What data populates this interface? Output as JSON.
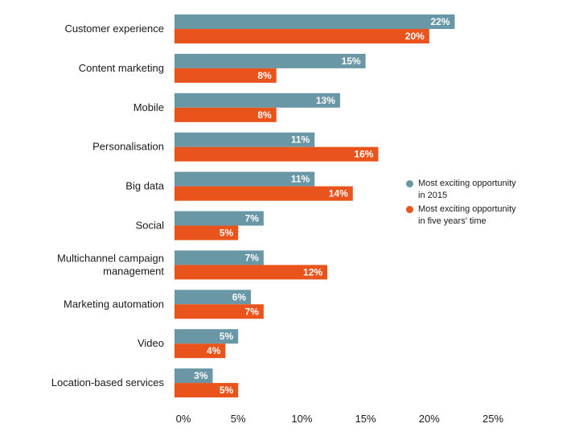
{
  "chart_data": {
    "type": "bar",
    "orientation": "horizontal",
    "categories": [
      "Customer experience",
      "Content marketing",
      "Mobile",
      "Personalisation",
      "Big data",
      "Social",
      "Multichannel campaign\nmanagement",
      "Marketing automation",
      "Video",
      "Location-based services"
    ],
    "series": [
      {
        "name": "Most exciting opportunity\nin 2015",
        "color": "#6a97a6",
        "values": [
          22,
          15,
          13,
          11,
          11,
          7,
          7,
          6,
          5,
          3
        ],
        "labels": [
          "22%",
          "15%",
          "13%",
          "11%",
          "11%",
          "7%",
          "7%",
          "6%",
          "5%",
          "3%"
        ]
      },
      {
        "name": "Most exciting opportunity\nin five years' time",
        "color": "#e9531c",
        "values": [
          20,
          8,
          8,
          16,
          14,
          5,
          12,
          7,
          4,
          5
        ],
        "labels": [
          "20%",
          "8%",
          "8%",
          "16%",
          "14%",
          "5%",
          "12%",
          "7%",
          "4%",
          "5%"
        ]
      }
    ],
    "xlim": [
      0,
      25
    ],
    "xticks": [
      0,
      5,
      10,
      15,
      20,
      25
    ],
    "xtick_labels": [
      "0%",
      "5%",
      "10%",
      "15%",
      "20%",
      "25%"
    ],
    "grid": false,
    "legend_position": "right"
  }
}
